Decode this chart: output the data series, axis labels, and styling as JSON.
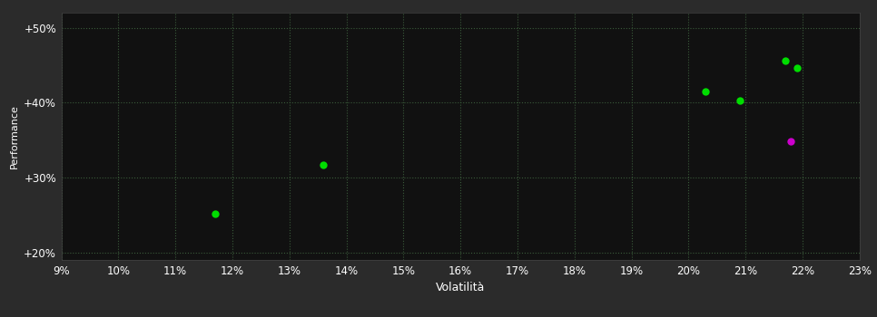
{
  "background_color": "#2b2b2b",
  "plot_bg_color": "#111111",
  "text_color": "#ffffff",
  "xlabel": "Volatilità",
  "ylabel": "Performance",
  "xlim": [
    0.09,
    0.23
  ],
  "ylim": [
    0.19,
    0.52
  ],
  "xticks": [
    0.09,
    0.1,
    0.11,
    0.12,
    0.13,
    0.14,
    0.15,
    0.16,
    0.17,
    0.18,
    0.19,
    0.2,
    0.21,
    0.22,
    0.23
  ],
  "yticks": [
    0.2,
    0.3,
    0.4,
    0.5
  ],
  "ytick_labels": [
    "+20%",
    "+30%",
    "+40%",
    "+50%"
  ],
  "green_points": [
    [
      0.117,
      0.252
    ],
    [
      0.136,
      0.317
    ],
    [
      0.203,
      0.415
    ],
    [
      0.209,
      0.403
    ],
    [
      0.217,
      0.456
    ],
    [
      0.219,
      0.446
    ]
  ],
  "magenta_points": [
    [
      0.218,
      0.348
    ]
  ],
  "green_color": "#00dd00",
  "magenta_color": "#cc00cc",
  "marker_size": 6,
  "grid_color": "#3a5a3a",
  "grid_linestyle": ":",
  "grid_linewidth": 0.8
}
